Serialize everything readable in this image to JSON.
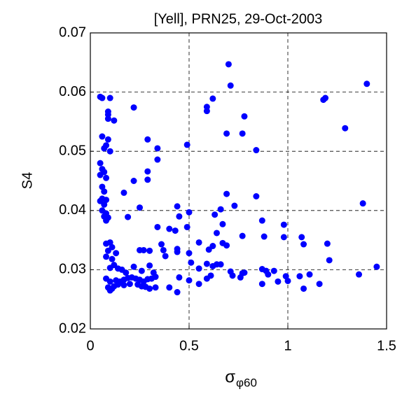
{
  "chart_data": {
    "type": "scatter",
    "title": "[Yell], PRN25, 29-Oct-2003",
    "x_label": "σ",
    "x_label_subscript": "φ60",
    "y_label": "S4",
    "xlim": [
      0,
      1.5
    ],
    "xticks": [
      0,
      0.5,
      1,
      1.5
    ],
    "ylim": [
      0.02,
      0.07
    ],
    "yticks": [
      0.02,
      0.03,
      0.04,
      0.05,
      0.06,
      0.07
    ],
    "grid": true,
    "color": "#0000ff",
    "x": [
      0.7,
      1.4,
      0.71,
      0.62,
      0.05,
      0.06,
      0.1,
      0.22,
      0.59,
      0.59,
      0.78,
      1.18,
      1.19,
      0.09,
      0.09,
      0.12,
      0.09,
      0.29,
      0.09,
      0.08,
      0.06,
      0.07,
      0.1,
      0.49,
      0.84,
      0.34,
      0.34,
      0.69,
      0.77,
      1.29,
      0.05,
      0.06,
      0.07,
      0.05,
      0.08,
      0.29,
      0.29,
      0.22,
      0.17,
      0.06,
      0.07,
      0.06,
      0.05,
      0.08,
      0.07,
      0.06,
      0.08,
      0.07,
      0.08,
      0.09,
      0.69,
      0.84,
      0.25,
      0.44,
      0.66,
      0.73,
      0.19,
      0.5,
      0.63,
      0.45,
      1.38,
      0.67,
      0.87,
      0.34,
      0.4,
      0.43,
      0.49,
      0.64,
      0.77,
      0.88,
      0.98,
      0.98,
      1.07,
      1.08,
      1.2,
      0.08,
      0.1,
      0.09,
      0.11,
      0.13,
      0.25,
      0.3,
      0.27,
      0.36,
      0.37,
      0.38,
      0.44,
      0.44,
      0.5,
      0.55,
      0.6,
      0.62,
      0.67,
      0.69,
      0.51,
      1.21,
      0.08,
      0.11,
      0.12,
      0.1,
      0.14,
      0.16,
      0.18,
      0.22,
      0.26,
      0.3,
      0.32,
      0.55,
      0.59,
      0.62,
      0.64,
      0.66,
      0.71,
      0.77,
      0.87,
      0.89,
      0.93,
      1.45,
      1.36,
      1.11,
      0.08,
      0.1,
      0.13,
      0.15,
      0.17,
      0.19,
      0.21,
      0.23,
      0.25,
      0.27,
      0.29,
      0.31,
      0.33,
      0.45,
      0.5,
      0.55,
      0.59,
      0.61,
      0.72,
      0.76,
      0.78,
      0.87,
      0.9,
      0.95,
      0.99,
      1.0,
      1.06,
      1.16,
      0.09,
      0.1,
      0.11,
      0.12,
      0.14,
      0.17,
      0.2,
      0.24,
      0.26,
      0.28,
      0.3,
      0.33,
      0.4,
      0.44,
      1.08
    ],
    "values": [
      0.0647,
      0.0614,
      0.0611,
      0.0589,
      0.0592,
      0.059,
      0.059,
      0.0574,
      0.0575,
      0.0568,
      0.0559,
      0.0587,
      0.059,
      0.0567,
      0.0562,
      0.0552,
      0.0555,
      0.052,
      0.052,
      0.051,
      0.0525,
      0.0505,
      0.05,
      0.0511,
      0.0502,
      0.0505,
      0.0486,
      0.053,
      0.053,
      0.0539,
      0.048,
      0.047,
      0.0465,
      0.046,
      0.0455,
      0.0466,
      0.0452,
      0.045,
      0.043,
      0.044,
      0.0432,
      0.042,
      0.0416,
      0.0418,
      0.041,
      0.04,
      0.0395,
      0.039,
      0.0383,
      0.0388,
      0.0428,
      0.0424,
      0.0405,
      0.0407,
      0.0402,
      0.0408,
      0.0389,
      0.0397,
      0.0393,
      0.039,
      0.0412,
      0.0377,
      0.0383,
      0.0372,
      0.0369,
      0.0366,
      0.0372,
      0.0362,
      0.0357,
      0.0356,
      0.0376,
      0.0355,
      0.0355,
      0.0343,
      0.0344,
      0.0344,
      0.0346,
      0.0332,
      0.0338,
      0.0328,
      0.0333,
      0.0332,
      0.0333,
      0.0343,
      0.0333,
      0.0323,
      0.0335,
      0.033,
      0.0328,
      0.0346,
      0.0334,
      0.034,
      0.0345,
      0.0341,
      0.0312,
      0.0316,
      0.0322,
      0.0318,
      0.0308,
      0.0303,
      0.0302,
      0.03,
      0.0295,
      0.0305,
      0.0298,
      0.0307,
      0.0295,
      0.0302,
      0.031,
      0.0306,
      0.0309,
      0.0309,
      0.0297,
      0.0294,
      0.0301,
      0.0298,
      0.0298,
      0.0305,
      0.0292,
      0.0292,
      0.0285,
      0.028,
      0.0282,
      0.028,
      0.0283,
      0.0286,
      0.0287,
      0.0285,
      0.0283,
      0.028,
      0.0284,
      0.0285,
      0.0288,
      0.0287,
      0.0282,
      0.0276,
      0.0285,
      0.029,
      0.029,
      0.0287,
      0.0295,
      0.0276,
      0.0292,
      0.028,
      0.0289,
      0.0281,
      0.0289,
      0.0276,
      0.027,
      0.0265,
      0.0268,
      0.0272,
      0.0275,
      0.0274,
      0.0276,
      0.0275,
      0.0272,
      0.0271,
      0.0268,
      0.027,
      0.027,
      0.0262,
      0.0268
    ]
  }
}
